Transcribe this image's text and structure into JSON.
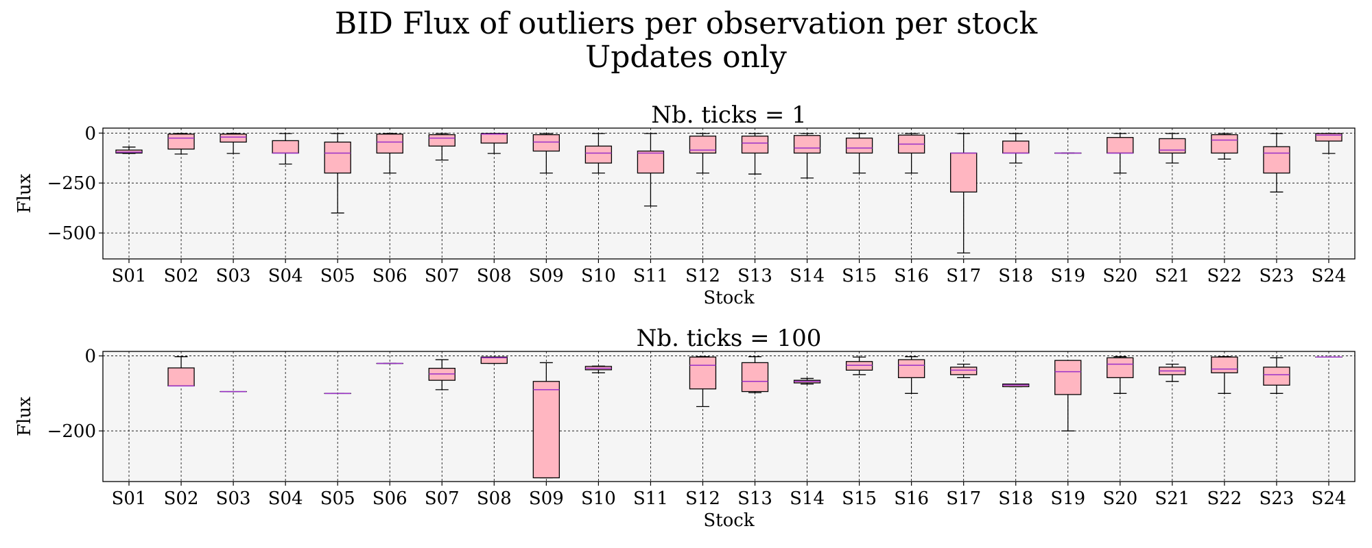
{
  "figure": {
    "title_line1": "BID Flux of outliers per observation per stock",
    "title_line2": "Updates only"
  },
  "style": {
    "box_fill": "#ffb6c1",
    "median_color": "#9b30c8",
    "axes_bg": "#f5f5f5",
    "grid": "dashed black"
  },
  "chart_data": [
    {
      "type": "box",
      "title": "Nb. ticks = 1",
      "xlabel": "Stock",
      "ylabel": "Flux",
      "ylim": [
        -630,
        25
      ],
      "yticks": [
        0,
        -250,
        -500
      ],
      "ytick_labels": [
        "0",
        "−250",
        "−500"
      ],
      "grid": true,
      "categories": [
        "S01",
        "S02",
        "S03",
        "S04",
        "S05",
        "S06",
        "S07",
        "S08",
        "S09",
        "S10",
        "S11",
        "S12",
        "S13",
        "S14",
        "S15",
        "S16",
        "S17",
        "S18",
        "S19",
        "S20",
        "S21",
        "S22",
        "S23",
        "S24"
      ],
      "boxes": [
        {
          "whislo": -102,
          "q1": -100,
          "med": -95,
          "q3": -85,
          "whishi": -70
        },
        {
          "whislo": -105,
          "q1": -80,
          "med": -25,
          "q3": -5,
          "whishi": -2
        },
        {
          "whislo": -102,
          "q1": -45,
          "med": -20,
          "q3": -5,
          "whishi": -2
        },
        {
          "whislo": -155,
          "q1": -100,
          "med": -100,
          "q3": -38,
          "whishi": -2
        },
        {
          "whislo": -400,
          "q1": -200,
          "med": -100,
          "q3": -45,
          "whishi": -2
        },
        {
          "whislo": -200,
          "q1": -100,
          "med": -45,
          "q3": -5,
          "whishi": -2
        },
        {
          "whislo": -135,
          "q1": -65,
          "med": -25,
          "q3": -8,
          "whishi": -2
        },
        {
          "whislo": -102,
          "q1": -50,
          "med": -5,
          "q3": -2,
          "whishi": -2
        },
        {
          "whislo": -200,
          "q1": -90,
          "med": -45,
          "q3": -8,
          "whishi": -2
        },
        {
          "whislo": -200,
          "q1": -150,
          "med": -100,
          "q3": -65,
          "whishi": -2
        },
        {
          "whislo": -365,
          "q1": -200,
          "med": -100,
          "q3": -90,
          "whishi": -2
        },
        {
          "whislo": -200,
          "q1": -100,
          "med": -85,
          "q3": -15,
          "whishi": -2
        },
        {
          "whislo": -205,
          "q1": -100,
          "med": -50,
          "q3": -15,
          "whishi": -2
        },
        {
          "whislo": -225,
          "q1": -100,
          "med": -75,
          "q3": -12,
          "whishi": -2
        },
        {
          "whislo": -200,
          "q1": -100,
          "med": -75,
          "q3": -25,
          "whishi": -2
        },
        {
          "whislo": -200,
          "q1": -100,
          "med": -55,
          "q3": -10,
          "whishi": -2
        },
        {
          "whislo": -600,
          "q1": -295,
          "med": -100,
          "q3": -100,
          "whishi": -2
        },
        {
          "whislo": -150,
          "q1": -100,
          "med": -100,
          "q3": -40,
          "whishi": -2
        },
        {
          "whislo": -100,
          "q1": -100,
          "med": -100,
          "q3": -100,
          "whishi": -100
        },
        {
          "whislo": -200,
          "q1": -100,
          "med": -100,
          "q3": -22,
          "whishi": -2
        },
        {
          "whislo": -150,
          "q1": -100,
          "med": -85,
          "q3": -28,
          "whishi": -2
        },
        {
          "whislo": -130,
          "q1": -100,
          "med": -35,
          "q3": -8,
          "whishi": -2
        },
        {
          "whislo": -295,
          "q1": -200,
          "med": -100,
          "q3": -68,
          "whishi": -2
        },
        {
          "whislo": -102,
          "q1": -40,
          "med": -10,
          "q3": -2,
          "whishi": -2
        }
      ]
    },
    {
      "type": "box",
      "title": "Nb. ticks = 100",
      "xlabel": "Stock",
      "ylabel": "Flux",
      "ylim": [
        -335,
        12
      ],
      "yticks": [
        0,
        -200
      ],
      "ytick_labels": [
        "0",
        "−200"
      ],
      "grid": true,
      "categories": [
        "S01",
        "S02",
        "S03",
        "S04",
        "S05",
        "S06",
        "S07",
        "S08",
        "S09",
        "S10",
        "S11",
        "S12",
        "S13",
        "S14",
        "S15",
        "S16",
        "S17",
        "S18",
        "S19",
        "S20",
        "S21",
        "S22",
        "S23",
        "S24"
      ],
      "boxes": [
        null,
        {
          "whislo": -80,
          "q1": -80,
          "med": -80,
          "q3": -32,
          "whishi": -2
        },
        {
          "whislo": -95,
          "q1": -95,
          "med": -95,
          "q3": -95,
          "whishi": -95
        },
        null,
        {
          "whislo": -100,
          "q1": -100,
          "med": -100,
          "q3": -100,
          "whishi": -100
        },
        {
          "whislo": -20,
          "q1": -20,
          "med": -20,
          "q3": -20,
          "whishi": -20
        },
        {
          "whislo": -90,
          "q1": -65,
          "med": -48,
          "q3": -33,
          "whishi": -10
        },
        {
          "whislo": -20,
          "q1": -20,
          "med": -5,
          "q3": -3,
          "whishi": -3
        },
        {
          "whislo": -325,
          "q1": -325,
          "med": -90,
          "q3": -68,
          "whishi": -18
        },
        {
          "whislo": -45,
          "q1": -37,
          "med": -33,
          "q3": -28,
          "whishi": -27
        },
        null,
        {
          "whislo": -135,
          "q1": -88,
          "med": -25,
          "q3": -3,
          "whishi": -2
        },
        {
          "whislo": -98,
          "q1": -95,
          "med": -68,
          "q3": -18,
          "whishi": -2
        },
        {
          "whislo": -75,
          "q1": -72,
          "med": -68,
          "q3": -65,
          "whishi": -60
        },
        {
          "whislo": -50,
          "q1": -38,
          "med": -25,
          "q3": -15,
          "whishi": -3
        },
        {
          "whislo": -100,
          "q1": -58,
          "med": -25,
          "q3": -10,
          "whishi": -2
        },
        {
          "whislo": -58,
          "q1": -50,
          "med": -38,
          "q3": -30,
          "whishi": -22
        },
        {
          "whislo": -82,
          "q1": -82,
          "med": -78,
          "q3": -75,
          "whishi": -75
        },
        {
          "whislo": -200,
          "q1": -103,
          "med": -42,
          "q3": -12,
          "whishi": -12
        },
        {
          "whislo": -100,
          "q1": -58,
          "med": -22,
          "q3": -5,
          "whishi": -2
        },
        {
          "whislo": -68,
          "q1": -50,
          "med": -40,
          "q3": -30,
          "whishi": -22
        },
        {
          "whislo": -100,
          "q1": -45,
          "med": -35,
          "q3": -3,
          "whishi": -2
        },
        {
          "whislo": -100,
          "q1": -78,
          "med": -50,
          "q3": -30,
          "whishi": -5
        },
        {
          "whislo": -3,
          "q1": -3,
          "med": -3,
          "q3": -3,
          "whishi": -3
        }
      ]
    }
  ]
}
